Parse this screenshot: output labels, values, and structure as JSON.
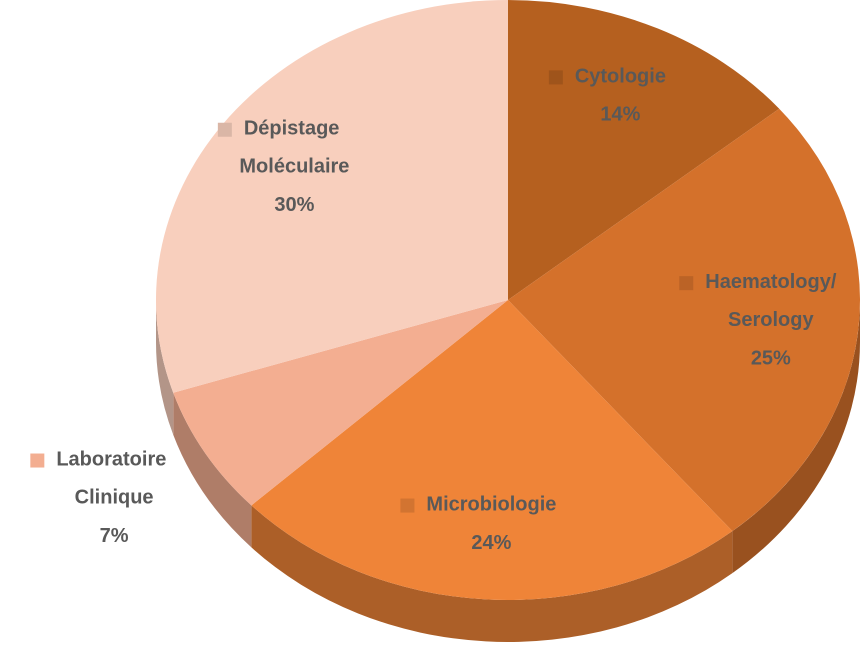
{
  "chart_data": {
    "type": "pie",
    "categories": [
      "Cytologie",
      "Haematology/Serology",
      "Microbiologie",
      "Laboratoire Clinique",
      "Dépistage Moléculaire"
    ],
    "values": [
      14,
      25,
      24,
      7,
      30
    ],
    "value_labels": [
      "14%",
      "25%",
      "24%",
      "7%",
      "30%"
    ],
    "colors": [
      "#b5601f",
      "#d4712b",
      "#ef8438",
      "#f3ae91",
      "#f8cfbd"
    ]
  }
}
